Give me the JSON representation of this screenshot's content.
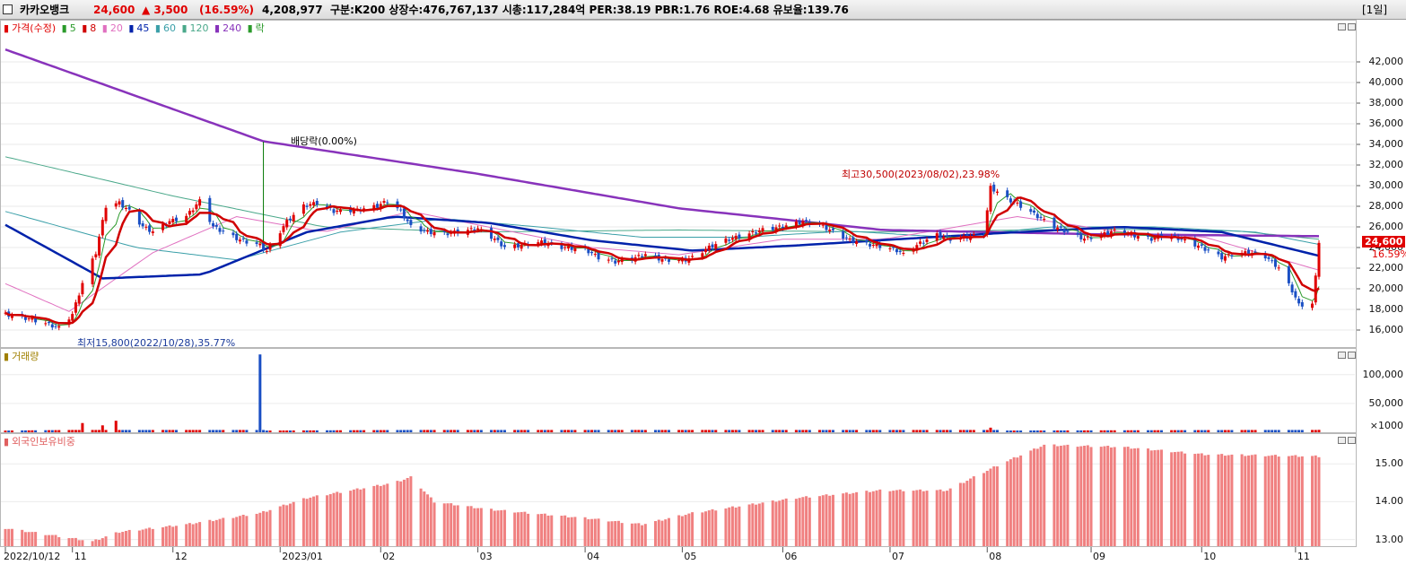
{
  "header": {
    "name": "카카오뱅크",
    "price": "24,600",
    "change": "▲ 3,500",
    "change_pct": "(16.59%)",
    "volume": "4,208,977",
    "info": "구분:K200 상장수:476,767,137 시총:117,284억 PER:38.19 PBR:1.76 ROE:4.68 유보율:139.76",
    "period": "[1일]"
  },
  "price_legend": {
    "title": "가격(수정)",
    "ma5": "5",
    "ma8": "8",
    "ma20": "20",
    "ma45": "45",
    "ma60": "60",
    "ma120": "120",
    "ma240": "240",
    "drop": "락"
  },
  "volume_legend": "거래량",
  "foreign_legend": "외국인보유비중",
  "annotations": {
    "dividend": "배당락(0.00%)",
    "high": "최고30,500(2023/08/02),23.98%",
    "low": "최저15,800(2022/10/28),35.77%"
  },
  "price_tags": {
    "price": "24,600",
    "pct": "16.59%"
  },
  "y_price_ticks": [
    "42,000",
    "40,000",
    "38,000",
    "36,000",
    "34,000",
    "32,000",
    "30,000",
    "28,000",
    "26,000",
    "24,000",
    "22,000",
    "20,000",
    "18,000",
    "16,000"
  ],
  "y_volume_ticks": [
    "100,000",
    "50,000",
    "×1000"
  ],
  "y_foreign_ticks": [
    "15.00",
    "14.00",
    "13.00"
  ],
  "x_ticks": [
    "2022/10/12",
    "11",
    "12",
    "2023/01",
    "02",
    "03",
    "04",
    "05",
    "06",
    "07",
    "08",
    "09",
    "10",
    "11"
  ],
  "colors": {
    "up": "#e00000",
    "down": "#1a4fc4",
    "ma5": "#2a9a2a",
    "ma8": "#d00000",
    "ma20": "#e070c0",
    "ma45": "#0022aa",
    "ma60": "#3a9fa8",
    "ma120": "#4aa88a",
    "ma240": "#8833bb"
  },
  "chart_data": {
    "type": "candlestick",
    "ylim": [
      15000,
      43500
    ],
    "price_anchors": [
      [
        "2022-10-12",
        17500
      ],
      [
        "2022-10-20",
        17000
      ],
      [
        "2022-10-28",
        16200
      ],
      [
        "2022-11-01",
        17500
      ],
      [
        "2022-11-04",
        20500
      ],
      [
        "2022-11-08",
        23500
      ],
      [
        "2022-11-11",
        28000
      ],
      [
        "2022-11-15",
        28300
      ],
      [
        "2022-11-18",
        27500
      ],
      [
        "2022-11-22",
        26000
      ],
      [
        "2022-11-25",
        25500
      ],
      [
        "2022-11-30",
        26500
      ],
      [
        "2022-12-05",
        27000
      ],
      [
        "2022-12-09",
        28500
      ],
      [
        "2022-12-13",
        26000
      ],
      [
        "2022-12-16",
        25500
      ],
      [
        "2022-12-21",
        24700
      ],
      [
        "2022-12-27",
        24200
      ],
      [
        "2022-12-29",
        23600
      ],
      [
        "2023-01-04",
        26500
      ],
      [
        "2023-01-09",
        28000
      ],
      [
        "2023-01-13",
        28300
      ],
      [
        "2023-01-18",
        27500
      ],
      [
        "2023-01-25",
        27600
      ],
      [
        "2023-01-31",
        28000
      ],
      [
        "2023-02-03",
        28500
      ],
      [
        "2023-02-07",
        27500
      ],
      [
        "2023-02-10",
        26000
      ],
      [
        "2023-02-15",
        25500
      ],
      [
        "2023-02-20",
        25300
      ],
      [
        "2023-02-24",
        25500
      ],
      [
        "2023-03-02",
        25800
      ],
      [
        "2023-03-07",
        24800
      ],
      [
        "2023-03-10",
        24000
      ],
      [
        "2023-03-15",
        24200
      ],
      [
        "2023-03-21",
        24500
      ],
      [
        "2023-03-27",
        24000
      ],
      [
        "2023-04-03",
        23800
      ],
      [
        "2023-04-07",
        23000
      ],
      [
        "2023-04-12",
        22600
      ],
      [
        "2023-04-17",
        22900
      ],
      [
        "2023-04-21",
        23300
      ],
      [
        "2023-04-26",
        22800
      ],
      [
        "2023-05-02",
        22700
      ],
      [
        "2023-05-05",
        23000
      ],
      [
        "2023-05-10",
        24000
      ],
      [
        "2023-05-15",
        24700
      ],
      [
        "2023-05-22",
        25300
      ],
      [
        "2023-05-26",
        25700
      ],
      [
        "2023-06-01",
        26000
      ],
      [
        "2023-06-07",
        26500
      ],
      [
        "2023-06-12",
        26200
      ],
      [
        "2023-06-16",
        25500
      ],
      [
        "2023-06-21",
        24700
      ],
      [
        "2023-06-26",
        24300
      ],
      [
        "2023-06-30",
        24100
      ],
      [
        "2023-07-05",
        23700
      ],
      [
        "2023-07-07",
        23300
      ],
      [
        "2023-07-12",
        24400
      ],
      [
        "2023-07-17",
        25200
      ],
      [
        "2023-07-21",
        24800
      ],
      [
        "2023-07-26",
        25000
      ],
      [
        "2023-07-31",
        25300
      ],
      [
        "2023-08-02",
        29800
      ],
      [
        "2023-08-07",
        28700
      ],
      [
        "2023-08-11",
        28000
      ],
      [
        "2023-08-16",
        27000
      ],
      [
        "2023-08-21",
        26000
      ],
      [
        "2023-08-25",
        25500
      ],
      [
        "2023-08-30",
        24800
      ],
      [
        "2023-09-05",
        25300
      ],
      [
        "2023-09-08",
        25600
      ],
      [
        "2023-09-13",
        25200
      ],
      [
        "2023-09-19",
        24800
      ],
      [
        "2023-09-22",
        25100
      ],
      [
        "2023-09-26",
        25000
      ],
      [
        "2023-10-04",
        24000
      ],
      [
        "2023-10-10",
        23000
      ],
      [
        "2023-10-13",
        23300
      ],
      [
        "2023-10-18",
        23500
      ],
      [
        "2023-10-23",
        23100
      ],
      [
        "2023-10-27",
        22000
      ],
      [
        "2023-10-31",
        19800
      ],
      [
        "2023-11-02",
        18400
      ],
      [
        "2023-11-06",
        18500
      ],
      [
        "2023-11-07",
        21100
      ],
      [
        "2023-11-08",
        24600
      ]
    ],
    "ma240_anchors": [
      [
        "2022-10-12",
        43200
      ],
      [
        "2022-12-28",
        34300
      ],
      [
        "2023-03-01",
        31200
      ],
      [
        "2023-05-01",
        27800
      ],
      [
        "2023-07-01",
        25700
      ],
      [
        "2023-09-01",
        25300
      ],
      [
        "2023-11-08",
        25100
      ]
    ],
    "ma45_anchors": [
      [
        "2022-10-12",
        26200
      ],
      [
        "2022-11-10",
        21000
      ],
      [
        "2022-12-10",
        21400
      ],
      [
        "2023-01-10",
        25500
      ],
      [
        "2023-02-05",
        27000
      ],
      [
        "2023-03-05",
        26400
      ],
      [
        "2023-04-05",
        24700
      ],
      [
        "2023-05-05",
        23700
      ],
      [
        "2023-06-05",
        24200
      ],
      [
        "2023-07-05",
        24800
      ],
      [
        "2023-08-05",
        25400
      ],
      [
        "2023-09-10",
        26000
      ],
      [
        "2023-10-10",
        25500
      ],
      [
        "2023-11-08",
        23200
      ]
    ],
    "ma60_anchors": [
      [
        "2022-10-12",
        27500
      ],
      [
        "2022-11-20",
        24000
      ],
      [
        "2022-12-20",
        22800
      ],
      [
        "2023-01-20",
        25500
      ],
      [
        "2023-02-20",
        26800
      ],
      [
        "2023-03-20",
        26000
      ],
      [
        "2023-04-20",
        25000
      ],
      [
        "2023-05-20",
        25000
      ],
      [
        "2023-06-20",
        25600
      ],
      [
        "2023-07-20",
        25000
      ],
      [
        "2023-08-20",
        26000
      ],
      [
        "2023-09-20",
        26000
      ],
      [
        "2023-10-20",
        25500
      ],
      [
        "2023-11-08",
        24300
      ]
    ],
    "ma120_anchors": [
      [
        "2022-10-12",
        32800
      ],
      [
        "2022-12-01",
        29000
      ],
      [
        "2023-01-15",
        26000
      ],
      [
        "2023-03-01",
        25500
      ],
      [
        "2023-05-01",
        25700
      ],
      [
        "2023-07-01",
        25500
      ],
      [
        "2023-09-01",
        25800
      ],
      [
        "2023-10-15",
        25600
      ],
      [
        "2023-11-08",
        24800
      ]
    ],
    "ma20_anchors": [
      [
        "2022-10-12",
        20500
      ],
      [
        "2022-10-31",
        17800
      ],
      [
        "2022-11-25",
        23500
      ],
      [
        "2022-12-20",
        27000
      ],
      [
        "2023-01-15",
        25500
      ],
      [
        "2023-02-10",
        27500
      ],
      [
        "2023-03-05",
        26000
      ],
      [
        "2023-04-05",
        24000
      ],
      [
        "2023-05-01",
        23300
      ],
      [
        "2023-06-01",
        24800
      ],
      [
        "2023-07-01",
        24800
      ],
      [
        "2023-08-10",
        27000
      ],
      [
        "2023-09-10",
        25500
      ],
      [
        "2023-10-05",
        25000
      ],
      [
        "2023-11-08",
        21800
      ]
    ],
    "volume_anchors": [
      [
        "2022-10-12",
        3000
      ],
      [
        "2022-11-01",
        4000
      ],
      [
        "2022-11-04",
        16000
      ],
      [
        "2022-11-10",
        12000
      ],
      [
        "2022-11-14",
        20000
      ],
      [
        "2022-11-20",
        5000
      ],
      [
        "2022-12-27",
        135000
      ],
      [
        "2022-12-29",
        3000
      ],
      [
        "2023-08-02",
        8000
      ],
      [
        "2023-08-05",
        3000
      ],
      [
        "2023-11-08",
        4200
      ]
    ],
    "foreign_anchors": [
      [
        "2022-10-12",
        13.3
      ],
      [
        "2022-11-07",
        12.95
      ],
      [
        "2022-11-15",
        13.2
      ],
      [
        "2022-12-05",
        13.4
      ],
      [
        "2022-12-27",
        13.7
      ],
      [
        "2023-01-10",
        14.1
      ],
      [
        "2023-02-05",
        14.5
      ],
      [
        "2023-02-10",
        14.65
      ],
      [
        "2023-02-17",
        14.0
      ],
      [
        "2023-03-05",
        13.8
      ],
      [
        "2023-04-05",
        13.55
      ],
      [
        "2023-04-20",
        13.4
      ],
      [
        "2023-05-05",
        13.7
      ],
      [
        "2023-06-05",
        14.1
      ],
      [
        "2023-06-30",
        14.3
      ],
      [
        "2023-07-20",
        14.3
      ],
      [
        "2023-08-05",
        15.0
      ],
      [
        "2023-08-18",
        15.5
      ],
      [
        "2023-09-10",
        15.45
      ],
      [
        "2023-10-05",
        15.25
      ],
      [
        "2023-11-08",
        15.2
      ]
    ],
    "foreign_ylim": [
      12.8,
      15.6
    ],
    "volume_ylim": [
      0,
      140000
    ]
  }
}
